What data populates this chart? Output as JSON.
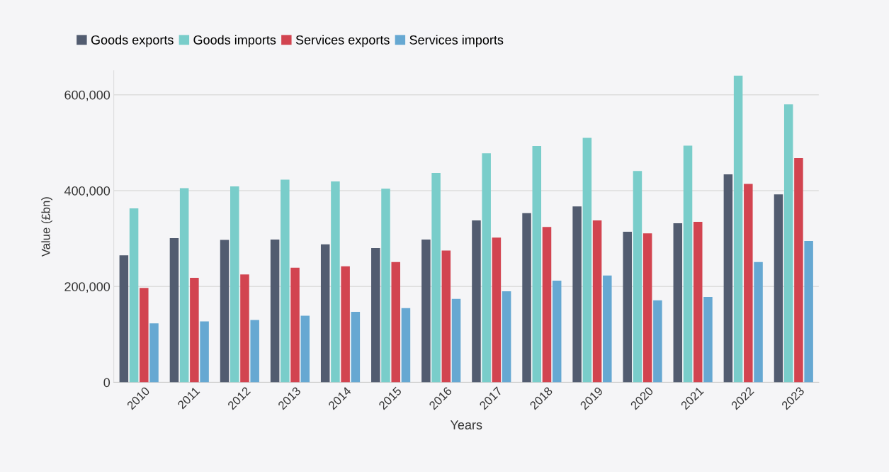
{
  "chart_data": {
    "type": "bar",
    "xlabel": "Years",
    "ylabel": "Value (£bn)",
    "categories": [
      "2010",
      "2011",
      "2012",
      "2013",
      "2014",
      "2015",
      "2016",
      "2017",
      "2018",
      "2019",
      "2020",
      "2021",
      "2022",
      "2023"
    ],
    "series": [
      {
        "name": "Goods exports",
        "color": "#525c70",
        "values": [
          265000,
          301000,
          297000,
          298000,
          288000,
          280000,
          298000,
          338000,
          353000,
          367000,
          314000,
          332000,
          434000,
          392000
        ]
      },
      {
        "name": "Goods imports",
        "color": "#79cdca",
        "values": [
          363000,
          405000,
          409000,
          423000,
          419000,
          404000,
          437000,
          478000,
          493000,
          510000,
          441000,
          494000,
          640000,
          580000
        ]
      },
      {
        "name": "Services exports",
        "color": "#d24450",
        "values": [
          197000,
          218000,
          225000,
          239000,
          242000,
          251000,
          275000,
          302000,
          324000,
          338000,
          311000,
          335000,
          414000,
          468000
        ]
      },
      {
        "name": "Services imports",
        "color": "#66a8d2",
        "values": [
          123000,
          127000,
          130000,
          139000,
          147000,
          155000,
          174000,
          190000,
          212000,
          223000,
          171000,
          178000,
          251000,
          295000
        ]
      }
    ],
    "ylim": [
      0,
      650000
    ],
    "yticks": [
      0,
      {
        "value": 200000,
        "label": "200,000"
      },
      {
        "value": 400000,
        "label": "400,000"
      },
      {
        "value": 600000,
        "label": "600,000"
      }
    ],
    "grid": "y",
    "legend": "top left"
  }
}
